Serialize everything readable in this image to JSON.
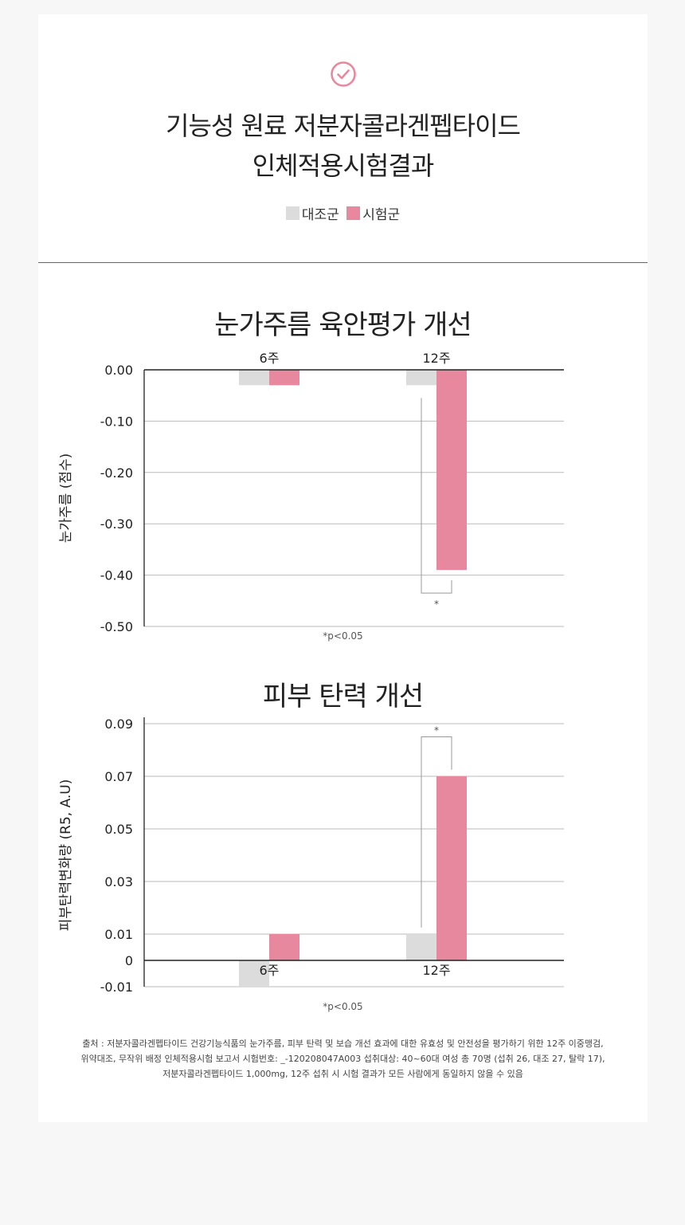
{
  "header": {
    "icon": "check-circle-icon",
    "title_line1": "기능성 원료 저분자콜라겐펩타이드",
    "title_line2": "인체적용시험결과"
  },
  "legend": [
    {
      "label": "대조군",
      "color": "#dcdcdc"
    },
    {
      "label": "시험군",
      "color": "#e8889f"
    }
  ],
  "chart_data": [
    {
      "type": "bar",
      "title": "눈가주름 육안평가 개선",
      "ylabel": "눈가주름 (점수)",
      "categories": [
        "6주",
        "12주"
      ],
      "series": [
        {
          "name": "대조군",
          "values": [
            -0.03,
            -0.03
          ]
        },
        {
          "name": "시험군",
          "values": [
            -0.03,
            -0.39
          ]
        }
      ],
      "ylim": [
        -0.5,
        0.0
      ],
      "yticks": [
        0.0,
        -0.1,
        -0.2,
        -0.3,
        -0.4,
        -0.5
      ],
      "ytick_labels": [
        "0.00",
        "-0.10",
        "-0.20",
        "-0.30",
        "-0.40",
        "-0.50"
      ],
      "grid": true,
      "significance_mark": "*",
      "note": "*p<0.05"
    },
    {
      "type": "bar",
      "title": "피부 탄력 개선",
      "ylabel": "피부탄력변화량 (R5, A.U)",
      "categories": [
        "6주",
        "12주"
      ],
      "series": [
        {
          "name": "대조군",
          "values": [
            -0.01,
            0.01
          ]
        },
        {
          "name": "시험군",
          "values": [
            0.01,
            0.07
          ]
        }
      ],
      "ylim": [
        -0.01,
        0.09
      ],
      "yticks": [
        0.09,
        0.07,
        0.05,
        0.03,
        0.01,
        0,
        -0.01
      ],
      "ytick_labels": [
        "0.09",
        "0.07",
        "0.05",
        "0.03",
        "0.01",
        "0",
        "-0.01"
      ],
      "grid": true,
      "significance_mark": "*",
      "note": "*p<0.05"
    }
  ],
  "colors": {
    "control": "#dcdcdc",
    "test": "#e8889f",
    "axis": "#222222",
    "grid": "#bbbbbb"
  },
  "source": {
    "line1": "출처 : 저분자콜라겐펩타이드 건강기능식품의 눈가주름, 피부 탄력 및 보습 개선 효과에 대한 유효성 및 안전성을 평가하기 위한 12주 이중맹검,",
    "line2": "위약대조, 무작위 배정 인체적용시험 보고서 시험번호: _-120208047A003 섭취대상: 40~60대 여성 총 70명 (섭취 26, 대조 27, 탈락 17),",
    "line3": "저분자콜라겐펩타이드 1,000mg, 12주 섭취 시 시험 결과가 모든 사람에게 동일하지 않을 수 있음"
  }
}
